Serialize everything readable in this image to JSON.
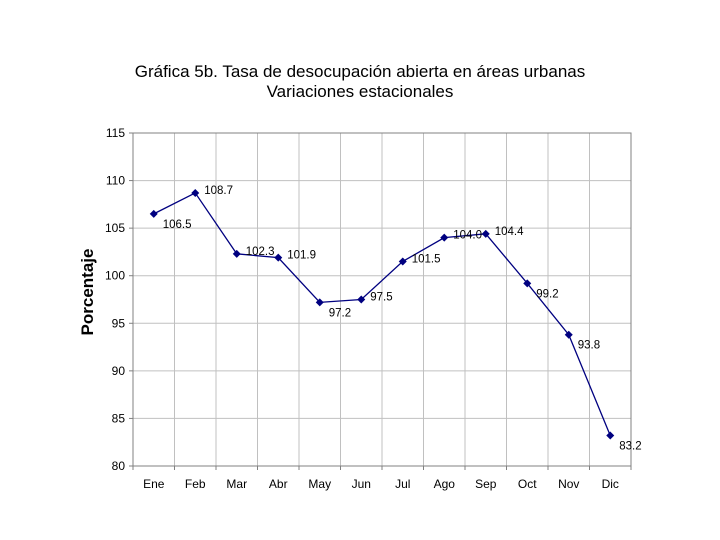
{
  "chart_data": {
    "type": "line",
    "title": "Gráfica 5b. Tasa de desocupación abierta en áreas urbanas",
    "subtitle": "Variaciones estacionales",
    "xlabel": "",
    "ylabel": "Porcentaje",
    "categories": [
      "Ene",
      "Feb",
      "Mar",
      "Abr",
      "May",
      "Jun",
      "Jul",
      "Ago",
      "Sep",
      "Oct",
      "Nov",
      "Dic"
    ],
    "series": [
      {
        "values": [
          106.5,
          108.7,
          102.3,
          101.9,
          97.2,
          97.5,
          101.5,
          104.0,
          104.4,
          99.2,
          93.8,
          83.2
        ]
      }
    ],
    "data_labels": [
      "106.5",
      "108.7",
      "102.3",
      "101.9",
      "97.2",
      "97.5",
      "101.5",
      "104.0",
      "104.4",
      "99.2",
      "93.8",
      "83.2"
    ],
    "ylim": [
      80,
      115
    ],
    "yticks": [
      80,
      85,
      90,
      95,
      100,
      105,
      110,
      115
    ],
    "grid": true,
    "legend": "none",
    "colors": {
      "line": "#000080",
      "grid": "#c0c0c0",
      "border": "#808080"
    }
  }
}
